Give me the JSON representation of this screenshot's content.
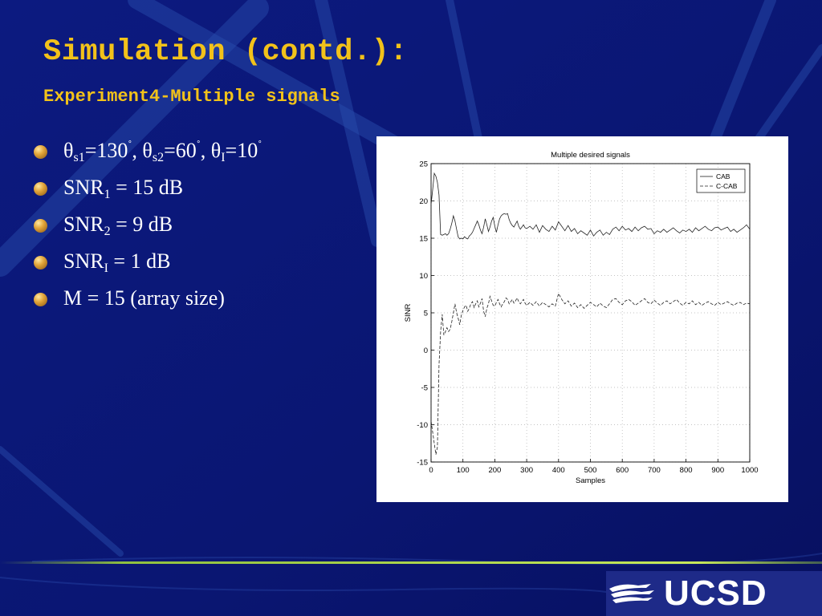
{
  "slide": {
    "title": "Simulation (contd.):",
    "subtitle": "Experiment4-Multiple signals",
    "logo_text": "UCSD"
  },
  "params": {
    "line1": {
      "theta_symbol": "θ",
      "s1_sub": "s1",
      "s1_value": "=130",
      "deg": "˚",
      "sep": ", ",
      "s2_sub": "s2",
      "s2_value": "=60",
      "i_sub": "I",
      "i_value": "=10"
    },
    "line2": {
      "pre": "SNR",
      "sub": "1",
      "post": " = 15 dB"
    },
    "line3": {
      "pre": "SNR",
      "sub": "2",
      "post": " = 9 dB"
    },
    "line4": {
      "pre": "SNR",
      "sub": "I",
      "post": " = 1 dB"
    },
    "line5": {
      "text": "M = 15  (array size)"
    }
  },
  "colors": {
    "background": "#0a1672",
    "title": "#f2c21a",
    "text": "#ffffff",
    "footer_line": "#9fd43a"
  },
  "chart_data": {
    "type": "line",
    "title": "Multiple desired signals",
    "xlabel": "Samples",
    "ylabel": "SINR",
    "xlim": [
      0,
      1000
    ],
    "ylim": [
      -15,
      25
    ],
    "xticks": [
      0,
      100,
      200,
      300,
      400,
      500,
      600,
      700,
      800,
      900,
      1000
    ],
    "yticks": [
      -15,
      -10,
      -5,
      0,
      5,
      10,
      15,
      20,
      25
    ],
    "grid": true,
    "legend_position": "top-right",
    "series": [
      {
        "name": "CAB",
        "style": "solid",
        "x": [
          0,
          5,
          10,
          15,
          20,
          25,
          30,
          35,
          40,
          45,
          50,
          55,
          60,
          65,
          70,
          75,
          80,
          85,
          90,
          95,
          100,
          105,
          110,
          115,
          120,
          125,
          130,
          135,
          140,
          145,
          150,
          155,
          160,
          165,
          170,
          175,
          180,
          185,
          190,
          195,
          200,
          205,
          210,
          215,
          220,
          225,
          230,
          235,
          240,
          245,
          250,
          255,
          260,
          265,
          270,
          275,
          280,
          285,
          290,
          295,
          300,
          310,
          320,
          330,
          340,
          350,
          360,
          370,
          380,
          390,
          400,
          410,
          420,
          430,
          440,
          450,
          460,
          470,
          480,
          490,
          500,
          510,
          520,
          530,
          540,
          550,
          560,
          570,
          580,
          590,
          600,
          610,
          620,
          630,
          640,
          650,
          660,
          670,
          680,
          690,
          700,
          710,
          720,
          730,
          740,
          750,
          760,
          770,
          780,
          790,
          800,
          810,
          820,
          830,
          840,
          850,
          860,
          870,
          880,
          890,
          900,
          910,
          920,
          930,
          940,
          950,
          960,
          970,
          980,
          990,
          1000
        ],
        "y": [
          19.5,
          21.5,
          23.7,
          23.3,
          22.5,
          20.8,
          15.5,
          15.4,
          15.5,
          15.6,
          15.4,
          15.6,
          16.2,
          17.0,
          18.0,
          17.3,
          16.2,
          15.2,
          14.9,
          15.0,
          14.9,
          15.2,
          15.0,
          14.9,
          15.3,
          15.5,
          15.8,
          16.3,
          16.8,
          17.3,
          16.8,
          16.1,
          15.6,
          16.5,
          17.6,
          16.8,
          15.9,
          16.5,
          17.3,
          17.8,
          16.6,
          15.8,
          16.8,
          17.6,
          18.0,
          18.2,
          18.3,
          18.2,
          18.3,
          17.5,
          17.0,
          16.7,
          16.5,
          16.9,
          17.3,
          16.6,
          16.2,
          16.5,
          16.8,
          16.4,
          16.3,
          16.6,
          16.2,
          16.8,
          15.8,
          16.7,
          16.2,
          15.9,
          16.6,
          16.1,
          17.2,
          16.6,
          16.0,
          16.7,
          15.9,
          16.3,
          15.6,
          16.0,
          15.7,
          15.4,
          16.1,
          15.3,
          15.8,
          16.1,
          15.4,
          15.8,
          15.5,
          16.2,
          16.5,
          16.0,
          16.6,
          16.1,
          16.3,
          15.9,
          16.5,
          16.0,
          16.4,
          16.6,
          16.2,
          16.3,
          15.6,
          16.0,
          15.8,
          16.2,
          15.8,
          16.1,
          16.4,
          16.0,
          15.7,
          16.1,
          15.9,
          16.2,
          15.8,
          16.4,
          16.0,
          16.3,
          16.6,
          16.2,
          16.0,
          16.4,
          16.5,
          16.1,
          16.3,
          16.5,
          15.9,
          16.2,
          15.8,
          16.1,
          16.4,
          16.8,
          16.2
        ]
      },
      {
        "name": "C-CAB",
        "style": "dashed",
        "x": [
          0,
          5,
          10,
          15,
          20,
          25,
          30,
          35,
          40,
          45,
          50,
          55,
          60,
          65,
          70,
          75,
          80,
          85,
          90,
          95,
          100,
          105,
          110,
          115,
          120,
          125,
          130,
          135,
          140,
          145,
          150,
          155,
          160,
          165,
          170,
          175,
          180,
          185,
          190,
          195,
          200,
          205,
          210,
          215,
          220,
          225,
          230,
          235,
          240,
          245,
          250,
          255,
          260,
          265,
          270,
          275,
          280,
          285,
          290,
          295,
          300,
          310,
          320,
          330,
          340,
          350,
          360,
          370,
          380,
          390,
          400,
          410,
          420,
          430,
          440,
          450,
          460,
          470,
          480,
          490,
          500,
          510,
          520,
          530,
          540,
          550,
          560,
          570,
          580,
          590,
          600,
          610,
          620,
          630,
          640,
          650,
          660,
          670,
          680,
          690,
          700,
          710,
          720,
          730,
          740,
          750,
          760,
          770,
          780,
          790,
          800,
          810,
          820,
          830,
          840,
          850,
          860,
          870,
          880,
          890,
          900,
          910,
          920,
          930,
          940,
          950,
          960,
          970,
          980,
          990,
          1000
        ],
        "y": [
          -9.5,
          -11.0,
          -12.5,
          -14.0,
          -13.0,
          -2.0,
          2.5,
          4.8,
          2.0,
          2.5,
          3.0,
          2.5,
          2.8,
          3.8,
          5.0,
          6.2,
          5.0,
          4.3,
          3.4,
          4.7,
          5.3,
          5.8,
          6.0,
          5.2,
          5.6,
          6.2,
          6.5,
          5.7,
          6.2,
          6.6,
          5.8,
          6.3,
          6.9,
          5.2,
          4.5,
          5.6,
          6.2,
          7.2,
          6.6,
          6.0,
          5.9,
          6.4,
          6.8,
          6.2,
          5.8,
          6.2,
          6.5,
          7.0,
          6.8,
          6.2,
          6.5,
          6.8,
          6.3,
          6.6,
          7.0,
          6.5,
          6.2,
          6.5,
          6.8,
          6.3,
          6.0,
          6.4,
          6.0,
          6.5,
          5.9,
          6.4,
          6.1,
          5.8,
          6.2,
          5.9,
          7.6,
          6.8,
          6.2,
          6.6,
          5.9,
          6.3,
          5.7,
          6.1,
          5.6,
          6.0,
          6.4,
          6.1,
          5.8,
          6.3,
          5.9,
          5.7,
          6.2,
          6.8,
          6.9,
          6.4,
          6.1,
          6.6,
          6.8,
          6.5,
          6.0,
          6.3,
          6.6,
          6.9,
          6.4,
          6.2,
          6.7,
          6.3,
          6.0,
          6.4,
          6.6,
          6.2,
          6.5,
          6.8,
          6.3,
          6.0,
          6.4,
          6.2,
          6.6,
          6.1,
          6.4,
          6.0,
          6.3,
          6.5,
          6.2,
          6.0,
          6.4,
          6.1,
          6.3,
          6.5,
          6.2,
          6.0,
          6.3,
          6.4,
          6.1,
          6.3,
          6.2
        ]
      }
    ]
  }
}
